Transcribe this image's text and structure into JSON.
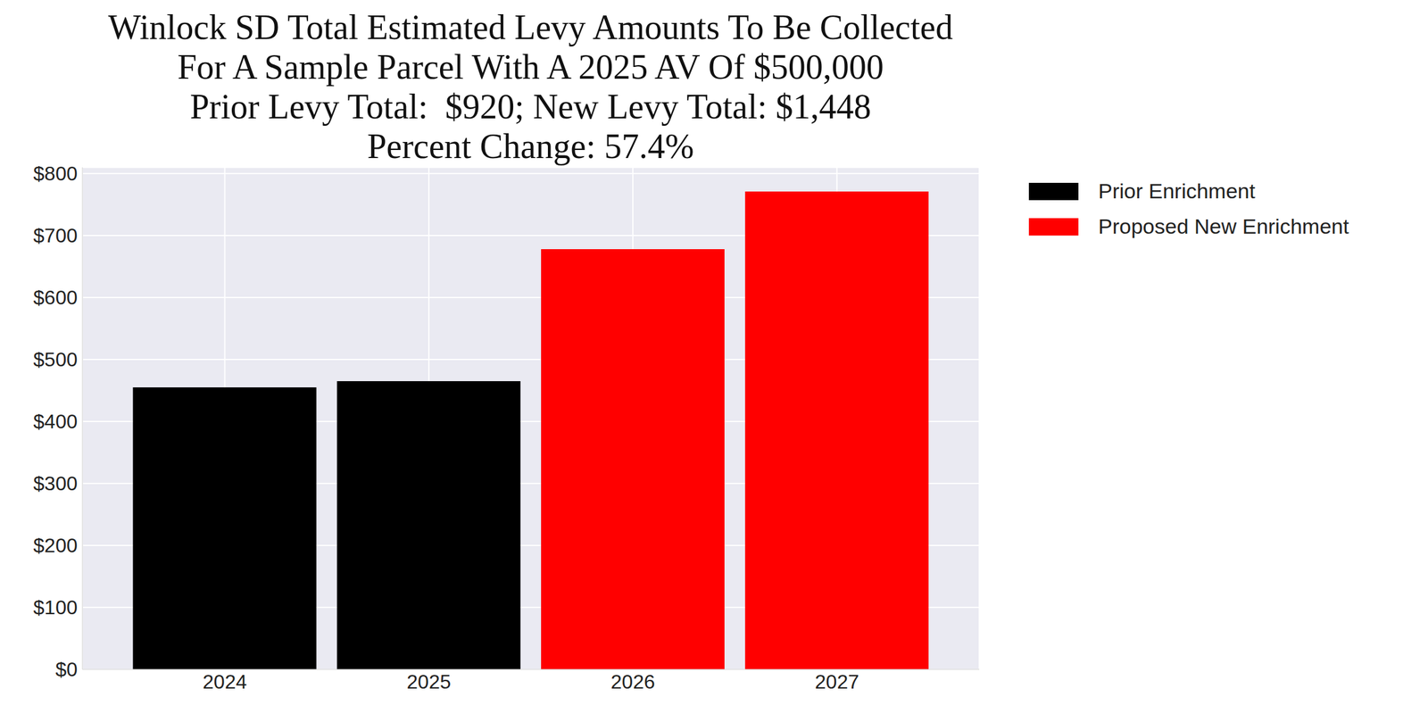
{
  "chart_data": {
    "type": "bar",
    "title": "Winlock SD Total Estimated Levy Amounts To Be Collected\nFor A Sample Parcel With A 2025 AV Of $500,000\nPrior Levy Total:  $920; New Levy Total: $1,448\nPercent Change: 57.4%",
    "categories": [
      "2024",
      "2025",
      "2026",
      "2027"
    ],
    "series": [
      {
        "name": "Prior Enrichment",
        "color": "#000000",
        "values": [
          455,
          465,
          null,
          null
        ]
      },
      {
        "name": "Proposed New Enrichment",
        "color": "#ff0000",
        "values": [
          null,
          null,
          678,
          771
        ]
      }
    ],
    "ylim": [
      0,
      810
    ],
    "yticks": [
      {
        "value": 0,
        "label": "$0"
      },
      {
        "value": 100,
        "label": "$100"
      },
      {
        "value": 200,
        "label": "$200"
      },
      {
        "value": 300,
        "label": "$300"
      },
      {
        "value": 400,
        "label": "$400"
      },
      {
        "value": 500,
        "label": "$500"
      },
      {
        "value": 600,
        "label": "$600"
      },
      {
        "value": 700,
        "label": "$700"
      },
      {
        "value": 800,
        "label": "$800"
      }
    ],
    "grid": true,
    "legend": "outside upper right"
  }
}
